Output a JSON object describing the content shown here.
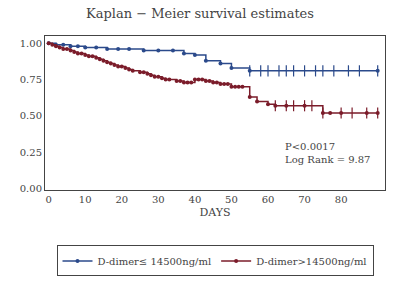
{
  "chart_data": {
    "type": "line",
    "title": "Kaplan − Meier survival estimates",
    "xlabel": "DAYS",
    "xlim": [
      -1,
      92
    ],
    "ylim": [
      -0.01,
      1.05
    ],
    "xticks": [
      0,
      10,
      20,
      30,
      40,
      50,
      60,
      70,
      80
    ],
    "yticks": [
      {
        "value": 0.0,
        "label": "0.00"
      },
      {
        "value": 0.25,
        "label": "0.25"
      },
      {
        "value": 0.5,
        "label": "0.50"
      },
      {
        "value": 0.75,
        "label": "0.75"
      },
      {
        "value": 1.0,
        "label": "1.00"
      }
    ],
    "grid": false,
    "legend": "bottom",
    "line_style": "step",
    "marker": "circle",
    "annotations": [
      "P<0.0017\nLog Rank = 9.87"
    ],
    "series": [
      {
        "name": "D-dimer≤ 14500ng/ml",
        "color": "#2b4a8b",
        "x": [
          0,
          2,
          4,
          6,
          8,
          10,
          13,
          16,
          19,
          22,
          26,
          30,
          34,
          37,
          40,
          43,
          47,
          50,
          55,
          90
        ],
        "values": [
          1.0,
          0.99,
          0.99,
          0.98,
          0.98,
          0.97,
          0.97,
          0.96,
          0.96,
          0.96,
          0.95,
          0.95,
          0.95,
          0.93,
          0.92,
          0.88,
          0.86,
          0.83,
          0.81,
          0.81
        ],
        "censored_x": [
          55,
          58,
          60,
          63,
          65,
          67,
          70,
          73,
          75,
          78,
          82,
          85,
          90
        ],
        "censored_values": [
          0.81,
          0.81,
          0.81,
          0.81,
          0.81,
          0.81,
          0.81,
          0.81,
          0.81,
          0.81,
          0.81,
          0.81,
          0.81
        ]
      },
      {
        "name": "D-dimer>14500ng/ml",
        "color": "#7b1c2a",
        "x": [
          0,
          1,
          2,
          3,
          4,
          5,
          6,
          7,
          8,
          9,
          10,
          11,
          12,
          13,
          14,
          15,
          16,
          17,
          18,
          19,
          20,
          21,
          22,
          23,
          25,
          26,
          27,
          28,
          29,
          30,
          31,
          32,
          33,
          35,
          36,
          37,
          38,
          39,
          40,
          41,
          42,
          43,
          44,
          45,
          46,
          47,
          48,
          49,
          50,
          51,
          52,
          53,
          55,
          57,
          60,
          62,
          65,
          70,
          75,
          77,
          80,
          87,
          90
        ],
        "values": [
          1.0,
          0.99,
          0.98,
          0.97,
          0.96,
          0.96,
          0.95,
          0.94,
          0.93,
          0.93,
          0.92,
          0.91,
          0.91,
          0.9,
          0.89,
          0.88,
          0.87,
          0.86,
          0.85,
          0.84,
          0.84,
          0.83,
          0.82,
          0.81,
          0.8,
          0.8,
          0.79,
          0.78,
          0.77,
          0.77,
          0.76,
          0.75,
          0.75,
          0.74,
          0.74,
          0.73,
          0.73,
          0.73,
          0.75,
          0.75,
          0.75,
          0.74,
          0.74,
          0.73,
          0.73,
          0.72,
          0.72,
          0.72,
          0.7,
          0.7,
          0.7,
          0.7,
          0.63,
          0.6,
          0.58,
          0.57,
          0.57,
          0.57,
          0.52,
          0.52,
          0.52,
          0.52,
          0.52
        ],
        "censored_x": [
          62,
          65,
          67,
          70,
          72,
          75,
          80,
          83,
          87,
          90
        ],
        "censored_values": [
          0.57,
          0.57,
          0.57,
          0.57,
          0.57,
          0.52,
          0.52,
          0.52,
          0.52,
          0.52
        ]
      }
    ]
  }
}
